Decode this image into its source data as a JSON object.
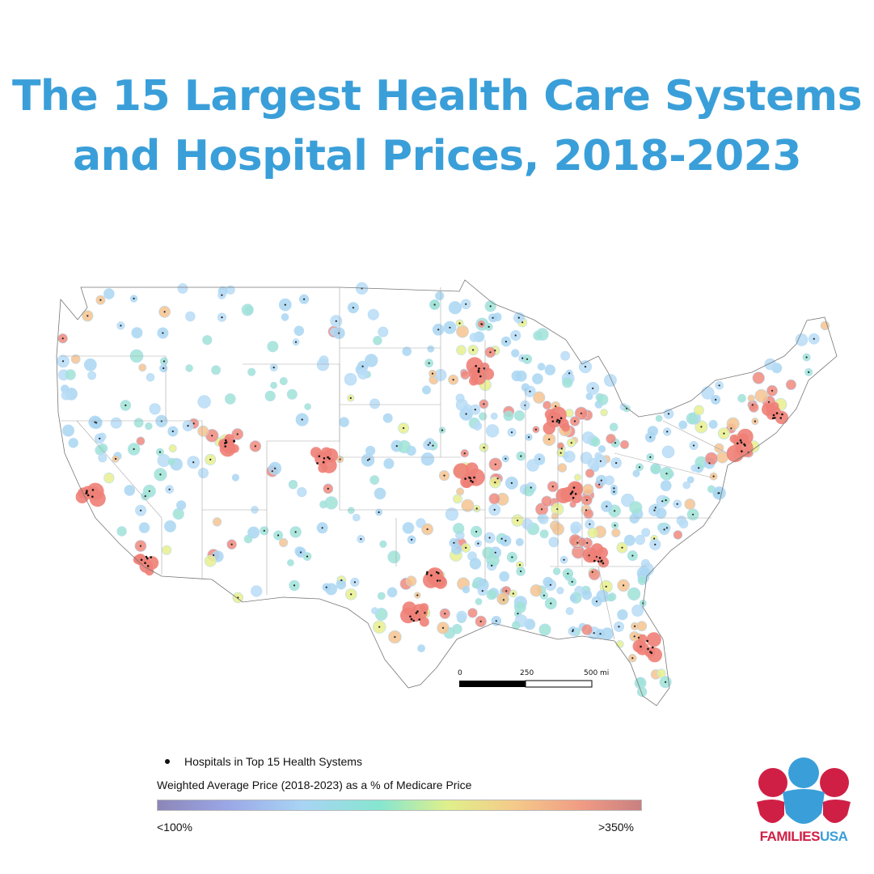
{
  "title": {
    "line1": "The 15 Largest Health Care Systems",
    "line2": "and Hospital Prices, 2018-2023"
  },
  "legend": {
    "dot_label": "Hospitals in Top 15 Health Systems",
    "gradient_title": "Weighted Average Price (2018-2023) as a % of Medicare Price",
    "low_label": "<100%",
    "high_label": ">350%",
    "gradient_colors": [
      "#8c86b8",
      "#9aa6e6",
      "#a8d4f5",
      "#86e6d0",
      "#dff08a",
      "#f5c98a",
      "#f09a84",
      "#c98080"
    ]
  },
  "scale_bar": {
    "labels": [
      "0",
      "250",
      "500 mi"
    ]
  },
  "logo": {
    "part1": "FAMILIES",
    "part2": "USA",
    "colors": {
      "red": "#d01f45",
      "blue": "#3a9fd9"
    }
  },
  "map": {
    "region": "contiguous United States",
    "hotspot_color": "#ee8077",
    "low_color": "#a9d6f2",
    "mid_color": "#e8ef8e"
  }
}
